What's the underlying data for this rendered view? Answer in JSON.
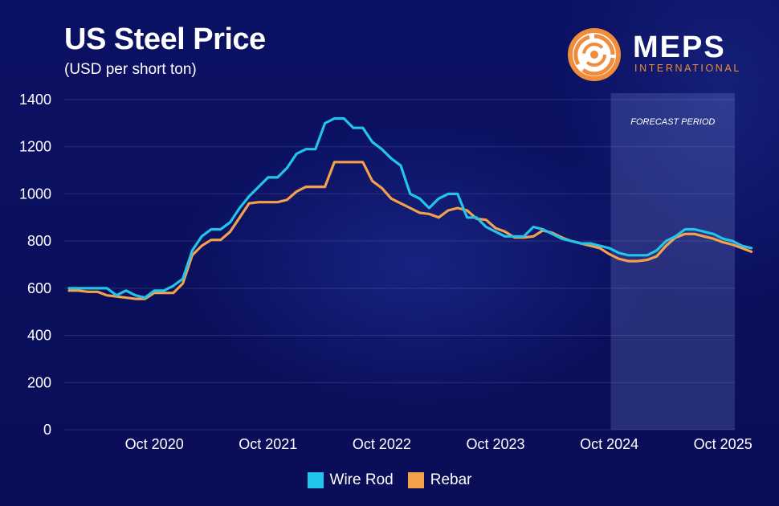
{
  "header": {
    "title": "US Steel Price",
    "subtitle": "(USD per short ton)"
  },
  "logo": {
    "name": "MEPS",
    "sub": "INTERNATIONAL",
    "icon": "meps-target-icon"
  },
  "colors": {
    "background": "#0a0f5e",
    "wire_rod": "#21c4ea",
    "rebar": "#f5a04a",
    "forecast_band": "#ffffff",
    "logo_orange": "#f08c3c"
  },
  "chart_data": {
    "type": "line",
    "xlabel": "",
    "ylabel": "",
    "ylim": [
      0,
      1400
    ],
    "yticks": [
      "0",
      "200",
      "400",
      "600",
      "800",
      "1000",
      "1200",
      "1400"
    ],
    "xtick_labels": [
      "Oct 2020",
      "Oct 2021",
      "Oct 2022",
      "Oct 2023",
      "Oct 2024",
      "Oct 2025"
    ],
    "x_start": "Jan 2020",
    "x_end": "Oct 2025",
    "grid": true,
    "legend_position": "bottom-center",
    "forecast": {
      "label": "FORECAST PERIOD",
      "start": "Oct 2024",
      "end": "Oct 2025"
    },
    "series": [
      {
        "name": "Wire Rod",
        "color": "#21c4ea",
        "values": [
          600,
          600,
          600,
          600,
          600,
          570,
          590,
          570,
          560,
          590,
          590,
          610,
          640,
          760,
          820,
          850,
          850,
          880,
          940,
          990,
          1030,
          1070,
          1070,
          1110,
          1170,
          1190,
          1190,
          1300,
          1320,
          1320,
          1280,
          1280,
          1220,
          1190,
          1150,
          1120,
          1000,
          980,
          940,
          980,
          1000,
          1000,
          900,
          900,
          860,
          840,
          820,
          820,
          820,
          860,
          850,
          830,
          810,
          800,
          790,
          790,
          780,
          770,
          750,
          740,
          740,
          740,
          760,
          800,
          820,
          850,
          850,
          840,
          830,
          810,
          800,
          780,
          770
        ]
      },
      {
        "name": "Rebar",
        "color": "#f5a04a",
        "values": [
          590,
          590,
          585,
          585,
          570,
          565,
          560,
          555,
          555,
          580,
          580,
          580,
          620,
          740,
          780,
          805,
          805,
          840,
          900,
          960,
          965,
          965,
          965,
          975,
          1010,
          1030,
          1030,
          1030,
          1135,
          1135,
          1135,
          1135,
          1055,
          1025,
          980,
          960,
          940,
          920,
          915,
          900,
          930,
          940,
          930,
          895,
          890,
          855,
          840,
          815,
          815,
          820,
          845,
          835,
          815,
          800,
          790,
          780,
          770,
          745,
          725,
          715,
          715,
          720,
          735,
          780,
          815,
          830,
          830,
          820,
          810,
          795,
          785,
          770,
          755
        ]
      }
    ]
  }
}
